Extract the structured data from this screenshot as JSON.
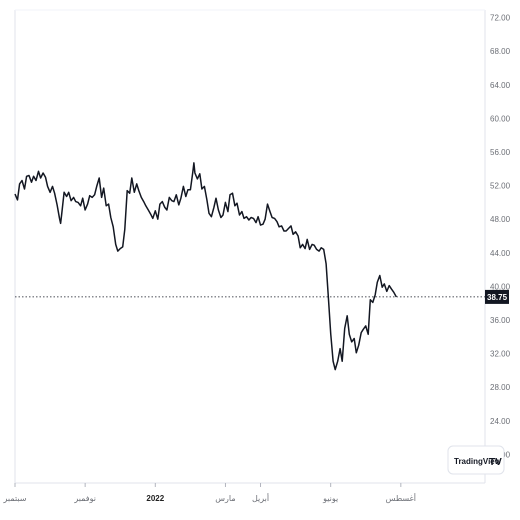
{
  "chart_data": {
    "type": "line",
    "y_ticks": [
      "72.00",
      "68.00",
      "64.00",
      "60.00",
      "56.00",
      "52.00",
      "48.00",
      "44.00",
      "40.00",
      "36.00",
      "32.00",
      "28.00",
      "24.00",
      "20.00"
    ],
    "x_tick_labels": [
      {
        "label": "سبتمبر",
        "month_index": 0,
        "bold": false
      },
      {
        "label": "نوفمبر",
        "month_index": 2,
        "bold": false
      },
      {
        "label": "2022",
        "month_index": 4,
        "bold": true
      },
      {
        "label": "مارس",
        "month_index": 6,
        "bold": false
      },
      {
        "label": "أبريل",
        "month_index": 7,
        "bold": false
      },
      {
        "label": "يونيو",
        "month_index": 9,
        "bold": false
      },
      {
        "label": "أغسطس",
        "month_index": 11,
        "bold": false
      }
    ],
    "ylim": [
      16.6,
      72.9
    ],
    "xlim": [
      0,
      13.4
    ],
    "current_price": 38.75,
    "current_price_label": "38.75",
    "series": [
      {
        "color": "#131722",
        "points": [
          [
            0.0,
            51.0
          ],
          [
            0.07,
            50.3
          ],
          [
            0.13,
            52.2
          ],
          [
            0.2,
            52.6
          ],
          [
            0.27,
            51.6
          ],
          [
            0.33,
            53.1
          ],
          [
            0.4,
            53.2
          ],
          [
            0.47,
            52.4
          ],
          [
            0.53,
            53.1
          ],
          [
            0.6,
            52.6
          ],
          [
            0.67,
            53.7
          ],
          [
            0.73,
            52.9
          ],
          [
            0.8,
            53.5
          ],
          [
            0.87,
            53.0
          ],
          [
            0.93,
            51.9
          ],
          [
            1.0,
            51.2
          ],
          [
            1.07,
            51.9
          ],
          [
            1.13,
            51.1
          ],
          [
            1.2,
            49.7
          ],
          [
            1.27,
            48.1
          ],
          [
            1.3,
            47.5
          ],
          [
            1.33,
            48.5
          ],
          [
            1.4,
            51.2
          ],
          [
            1.47,
            50.7
          ],
          [
            1.53,
            51.2
          ],
          [
            1.6,
            50.2
          ],
          [
            1.67,
            50.6
          ],
          [
            1.73,
            50.1
          ],
          [
            1.8,
            50.0
          ],
          [
            1.87,
            49.6
          ],
          [
            1.93,
            50.5
          ],
          [
            2.0,
            49.1
          ],
          [
            2.07,
            49.8
          ],
          [
            2.13,
            50.8
          ],
          [
            2.2,
            50.6
          ],
          [
            2.27,
            50.9
          ],
          [
            2.33,
            51.9
          ],
          [
            2.4,
            52.9
          ],
          [
            2.47,
            50.6
          ],
          [
            2.53,
            51.7
          ],
          [
            2.6,
            49.6
          ],
          [
            2.67,
            49.8
          ],
          [
            2.73,
            48.2
          ],
          [
            2.8,
            47.1
          ],
          [
            2.87,
            45.0
          ],
          [
            2.93,
            44.2
          ],
          [
            3.0,
            44.5
          ],
          [
            3.07,
            44.7
          ],
          [
            3.13,
            46.8
          ],
          [
            3.2,
            51.4
          ],
          [
            3.27,
            51.1
          ],
          [
            3.33,
            52.9
          ],
          [
            3.4,
            51.2
          ],
          [
            3.47,
            52.2
          ],
          [
            3.53,
            51.4
          ],
          [
            3.6,
            50.6
          ],
          [
            3.67,
            50.1
          ],
          [
            3.73,
            49.6
          ],
          [
            3.8,
            49.1
          ],
          [
            3.87,
            48.6
          ],
          [
            3.93,
            48.1
          ],
          [
            4.0,
            49.0
          ],
          [
            4.07,
            48.0
          ],
          [
            4.13,
            49.8
          ],
          [
            4.2,
            50.1
          ],
          [
            4.27,
            49.4
          ],
          [
            4.33,
            49.1
          ],
          [
            4.4,
            50.6
          ],
          [
            4.47,
            50.2
          ],
          [
            4.53,
            50.1
          ],
          [
            4.6,
            50.9
          ],
          [
            4.67,
            49.7
          ],
          [
            4.73,
            50.5
          ],
          [
            4.8,
            51.9
          ],
          [
            4.87,
            50.7
          ],
          [
            4.93,
            51.5
          ],
          [
            5.0,
            51.5
          ],
          [
            5.07,
            53.6
          ],
          [
            5.1,
            54.7
          ],
          [
            5.13,
            53.5
          ],
          [
            5.2,
            52.8
          ],
          [
            5.27,
            53.4
          ],
          [
            5.33,
            51.6
          ],
          [
            5.4,
            51.9
          ],
          [
            5.47,
            50.3
          ],
          [
            5.53,
            48.7
          ],
          [
            5.6,
            48.3
          ],
          [
            5.67,
            49.4
          ],
          [
            5.73,
            50.5
          ],
          [
            5.8,
            49.1
          ],
          [
            5.87,
            48.2
          ],
          [
            5.93,
            48.5
          ],
          [
            6.0,
            50.0
          ],
          [
            6.07,
            48.9
          ],
          [
            6.13,
            50.9
          ],
          [
            6.2,
            51.1
          ],
          [
            6.27,
            49.6
          ],
          [
            6.33,
            49.9
          ],
          [
            6.4,
            48.5
          ],
          [
            6.47,
            48.9
          ],
          [
            6.53,
            48.1
          ],
          [
            6.6,
            48.3
          ],
          [
            6.67,
            47.9
          ],
          [
            6.73,
            48.2
          ],
          [
            6.8,
            48.1
          ],
          [
            6.87,
            47.6
          ],
          [
            6.93,
            48.3
          ],
          [
            7.0,
            47.3
          ],
          [
            7.07,
            47.4
          ],
          [
            7.13,
            48.0
          ],
          [
            7.2,
            49.8
          ],
          [
            7.27,
            48.9
          ],
          [
            7.33,
            48.2
          ],
          [
            7.4,
            48.1
          ],
          [
            7.47,
            47.7
          ],
          [
            7.53,
            47.1
          ],
          [
            7.6,
            47.2
          ],
          [
            7.67,
            46.6
          ],
          [
            7.73,
            46.6
          ],
          [
            7.8,
            46.9
          ],
          [
            7.87,
            47.2
          ],
          [
            7.93,
            46.2
          ],
          [
            8.0,
            46.5
          ],
          [
            8.07,
            46.0
          ],
          [
            8.13,
            44.6
          ],
          [
            8.2,
            45.0
          ],
          [
            8.27,
            44.5
          ],
          [
            8.33,
            45.6
          ],
          [
            8.4,
            44.4
          ],
          [
            8.47,
            45.0
          ],
          [
            8.53,
            44.9
          ],
          [
            8.6,
            44.4
          ],
          [
            8.67,
            44.2
          ],
          [
            8.73,
            44.6
          ],
          [
            8.8,
            44.4
          ],
          [
            8.87,
            42.7
          ],
          [
            8.93,
            39.0
          ],
          [
            9.0,
            34.4
          ],
          [
            9.07,
            31.1
          ],
          [
            9.13,
            30.1
          ],
          [
            9.2,
            31.1
          ],
          [
            9.27,
            32.6
          ],
          [
            9.33,
            31.1
          ],
          [
            9.4,
            35.0
          ],
          [
            9.47,
            36.5
          ],
          [
            9.53,
            34.3
          ],
          [
            9.6,
            33.4
          ],
          [
            9.67,
            33.8
          ],
          [
            9.73,
            32.1
          ],
          [
            9.8,
            33.0
          ],
          [
            9.87,
            34.5
          ],
          [
            9.93,
            34.9
          ],
          [
            10.0,
            35.3
          ],
          [
            10.07,
            34.3
          ],
          [
            10.13,
            38.4
          ],
          [
            10.2,
            38.1
          ],
          [
            10.27,
            39.0
          ],
          [
            10.33,
            40.5
          ],
          [
            10.4,
            41.3
          ],
          [
            10.47,
            39.9
          ],
          [
            10.53,
            40.3
          ],
          [
            10.6,
            39.4
          ],
          [
            10.67,
            40.1
          ],
          [
            10.73,
            39.7
          ],
          [
            10.8,
            39.3
          ],
          [
            10.87,
            38.75
          ]
        ]
      }
    ]
  },
  "watermark": {
    "text": "TradingView",
    "logo_text": "TV"
  }
}
